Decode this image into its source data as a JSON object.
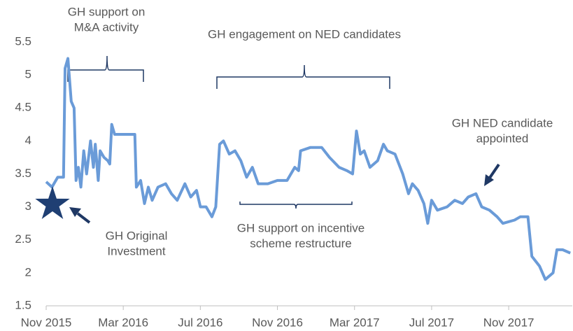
{
  "chart_data": {
    "type": "line",
    "x": [
      0,
      0.3,
      0.6,
      0.9,
      0.98,
      1.13,
      1.3,
      1.45,
      1.55,
      1.67,
      1.8,
      1.95,
      2.1,
      2.3,
      2.45,
      2.55,
      2.7,
      2.8,
      3.0,
      3.2,
      3.3,
      3.4,
      3.55,
      4.0,
      4.6,
      4.68,
      4.9,
      5.1,
      5.3,
      5.5,
      5.8,
      6.2,
      6.5,
      6.8,
      7.2,
      7.5,
      7.8,
      8.0,
      8.3,
      8.6,
      8.8,
      9.0,
      9.2,
      9.5,
      9.8,
      10.1,
      10.4,
      10.7,
      11.0,
      11.5,
      12.0,
      12.5,
      12.9,
      13.1,
      13.2,
      13.7,
      14.3,
      14.7,
      15.2,
      15.6,
      15.9,
      16.1,
      16.3,
      16.5,
      16.8,
      17.2,
      17.5,
      17.7,
      18.1,
      18.5,
      18.8,
      19.0,
      19.3,
      19.6,
      19.8,
      20.0,
      20.3,
      20.8,
      21.2,
      21.6,
      21.9,
      22.3,
      22.6,
      23.0,
      23.4,
      23.7,
      24.3,
      24.6,
      25.0,
      25.2,
      25.6,
      25.9,
      26.3,
      26.5,
      26.8,
      27.2
    ],
    "series": [
      {
        "color": "#6a9bd8",
        "values": [
          3.38,
          3.3,
          3.45,
          3.45,
          5.1,
          5.25,
          4.6,
          4.5,
          3.4,
          3.6,
          3.3,
          3.85,
          3.5,
          4.0,
          3.6,
          3.95,
          3.4,
          3.85,
          3.75,
          3.7,
          3.65,
          4.25,
          4.1,
          4.1,
          4.1,
          3.3,
          3.4,
          3.05,
          3.3,
          3.1,
          3.3,
          3.35,
          3.2,
          3.1,
          3.35,
          3.15,
          3.25,
          3.0,
          3.0,
          2.85,
          3.0,
          3.95,
          4.0,
          3.8,
          3.85,
          3.7,
          3.45,
          3.6,
          3.35,
          3.35,
          3.4,
          3.4,
          3.6,
          3.55,
          3.85,
          3.9,
          3.9,
          3.75,
          3.6,
          3.55,
          3.5,
          4.15,
          3.8,
          3.85,
          3.6,
          3.7,
          3.95,
          3.85,
          3.8,
          3.5,
          3.2,
          3.35,
          3.25,
          3.05,
          2.75,
          3.1,
          2.95,
          3.0,
          3.1,
          3.05,
          3.15,
          3.2,
          3.0,
          2.95,
          2.85,
          2.75,
          2.8,
          2.85,
          2.85,
          2.25,
          2.1,
          1.9,
          2.0,
          2.35,
          2.35,
          2.3
        ]
      }
    ],
    "xlim": [
      0,
      27.3
    ],
    "xticks": [
      {
        "value": 0,
        "label": "Nov 2015"
      },
      {
        "value": 4,
        "label": "Mar 2016"
      },
      {
        "value": 8,
        "label": "Jul 2016"
      },
      {
        "value": 12,
        "label": "Nov 2016"
      },
      {
        "value": 16,
        "label": "Mar 2017"
      },
      {
        "value": 20,
        "label": "Jul 2017"
      },
      {
        "value": 24,
        "label": "Nov 2017"
      }
    ],
    "ylim": [
      1.5,
      5.5
    ],
    "yticks": [
      1.5,
      2,
      2.5,
      3,
      3.5,
      4,
      4.5,
      5,
      5.5
    ],
    "grid": false,
    "annotations": [
      {
        "lines": [
          "GH support on",
          "M&A activity"
        ]
      },
      {
        "lines": [
          "GH engagement on NED candidates"
        ]
      },
      {
        "lines": [
          "GH NED candidate",
          "appointed"
        ]
      },
      {
        "lines": [
          "GH Original",
          "Investment"
        ]
      },
      {
        "lines": [
          "GH support on incentive",
          "scheme restructure"
        ]
      }
    ]
  }
}
